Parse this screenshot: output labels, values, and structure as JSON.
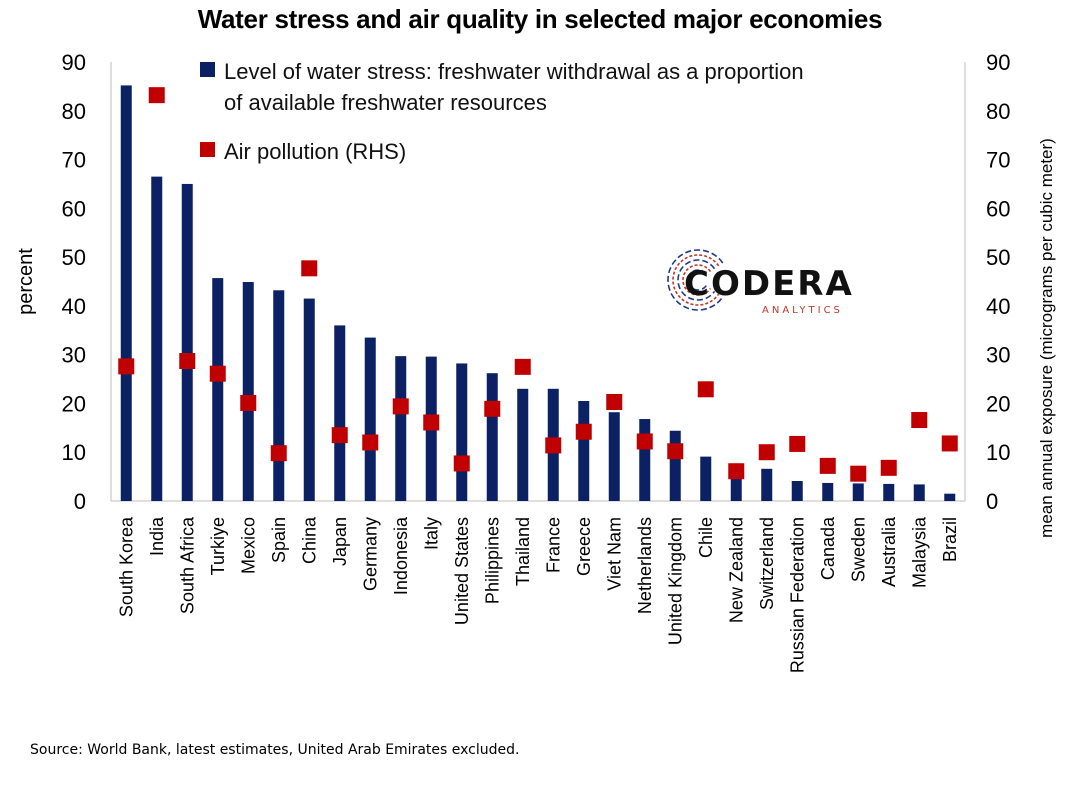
{
  "title": "Water stress and air quality in selected major economies",
  "source": "Source: World Bank, latest estimates, United Arab Emirates excluded.",
  "logo": {
    "main": "CODERA",
    "sub": "ANALYTICS"
  },
  "colors": {
    "bars": "#0b2163",
    "markers": "#c00000"
  },
  "chart_data": {
    "type": "bar",
    "categories": [
      "South Korea",
      "India",
      "South Africa",
      "Turkiye",
      "Mexico",
      "Spain",
      "China",
      "Japan",
      "Germany",
      "Indonesia",
      "Italy",
      "United States",
      "Philippines",
      "Thailand",
      "France",
      "Greece",
      "Viet Nam",
      "Netherlands",
      "United Kingdom",
      "Chile",
      "New Zealand",
      "Switzerland",
      "Russian Federation",
      "Canada",
      "Sweden",
      "Australia",
      "Malaysia",
      "Brazil"
    ],
    "series": [
      {
        "name": "Level of water stress: freshwater withdrawal as a proportion of available freshwater resources",
        "legend_lines": [
          "Level of water stress: freshwater withdrawal as a proportion",
          "of available freshwater resources"
        ],
        "type": "bar",
        "axis": "left",
        "values": [
          85.2,
          66.5,
          65.0,
          45.7,
          44.9,
          43.2,
          41.5,
          36.0,
          33.5,
          29.7,
          29.6,
          28.2,
          26.2,
          23.0,
          23.0,
          20.5,
          18.2,
          16.8,
          14.4,
          9.1,
          7.7,
          6.6,
          4.1,
          3.7,
          3.6,
          3.5,
          3.4,
          1.5
        ]
      },
      {
        "name": "Air pollution (RHS)",
        "legend_lines": [
          "Air pollution (RHS)"
        ],
        "type": "scatter",
        "axis": "right",
        "values": [
          27.6,
          83.2,
          28.7,
          26.1,
          20.1,
          9.8,
          47.7,
          13.5,
          12.0,
          19.4,
          16.1,
          7.7,
          18.9,
          27.5,
          11.4,
          14.2,
          20.3,
          12.2,
          10.2,
          22.9,
          6.1,
          10.0,
          11.7,
          7.2,
          5.6,
          6.8,
          16.6,
          11.8
        ]
      }
    ],
    "ylabel": "percent",
    "y2label": "mean annual exposure (micrograms per cubic meter)",
    "ylim": [
      0,
      90
    ],
    "y2lim": [
      0,
      90
    ],
    "yticks": [
      0,
      10,
      20,
      30,
      40,
      50,
      60,
      70,
      80,
      90
    ],
    "grid": false,
    "legend_position": "top"
  }
}
